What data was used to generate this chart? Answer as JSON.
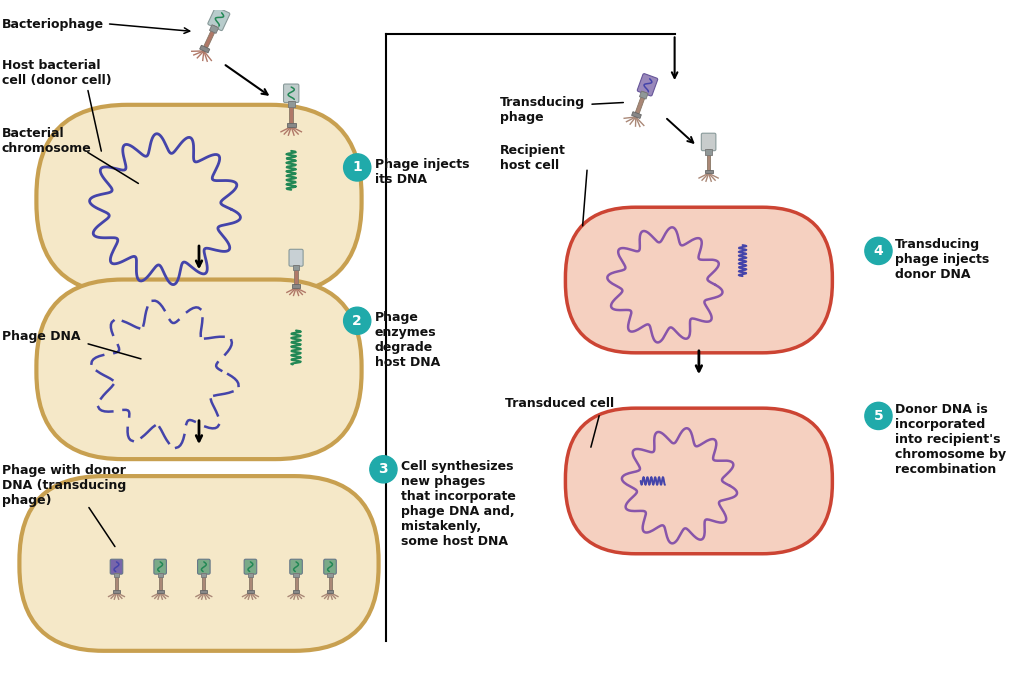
{
  "bg_color": "#ffffff",
  "cell_left_fc": "#f5e8c8",
  "cell_left_ec": "#c8a050",
  "cell_right_fc": "#f5d0c0",
  "cell_right_ec": "#cc4433",
  "dna_blue": "#4444aa",
  "dna_purple": "#8855aa",
  "dna_green": "#228855",
  "teal": "#20aaaa",
  "phage_head_grey": "#c0c8cc",
  "phage_head_purple": "#7766aa",
  "phage_tail": "#aa7766",
  "phage_edge": "#888888",
  "arrow_color": "#111111",
  "text_color": "#111111",
  "labels": {
    "bacteriophage": "Bacteriophage",
    "host_bacterial": "Host bacterial\ncell (donor cell)",
    "bacterial_chromosome": "Bacterial\nchromosome",
    "phage_dna": "Phage DNA",
    "phage_donor": "Phage with donor\nDNA (transducing\nphage)",
    "transducing_phage": "Transducing\nphage",
    "recipient_host": "Recipient\nhost cell",
    "transduced_cell": "Transduced cell",
    "step1": "Phage injects\nits DNA",
    "step2": "Phage\nenzymes\ndegrade\nhost DNA",
    "step3": "Cell synthesizes\nnew phages\nthat incorporate\nphage DNA and,\nmistakenly,\nsome host DNA",
    "step4": "Transducing\nphage injects\ndonor DNA",
    "step5": "Donor DNA is\nincorporated\ninto recipient's\nchromosome by\nrecombination"
  }
}
